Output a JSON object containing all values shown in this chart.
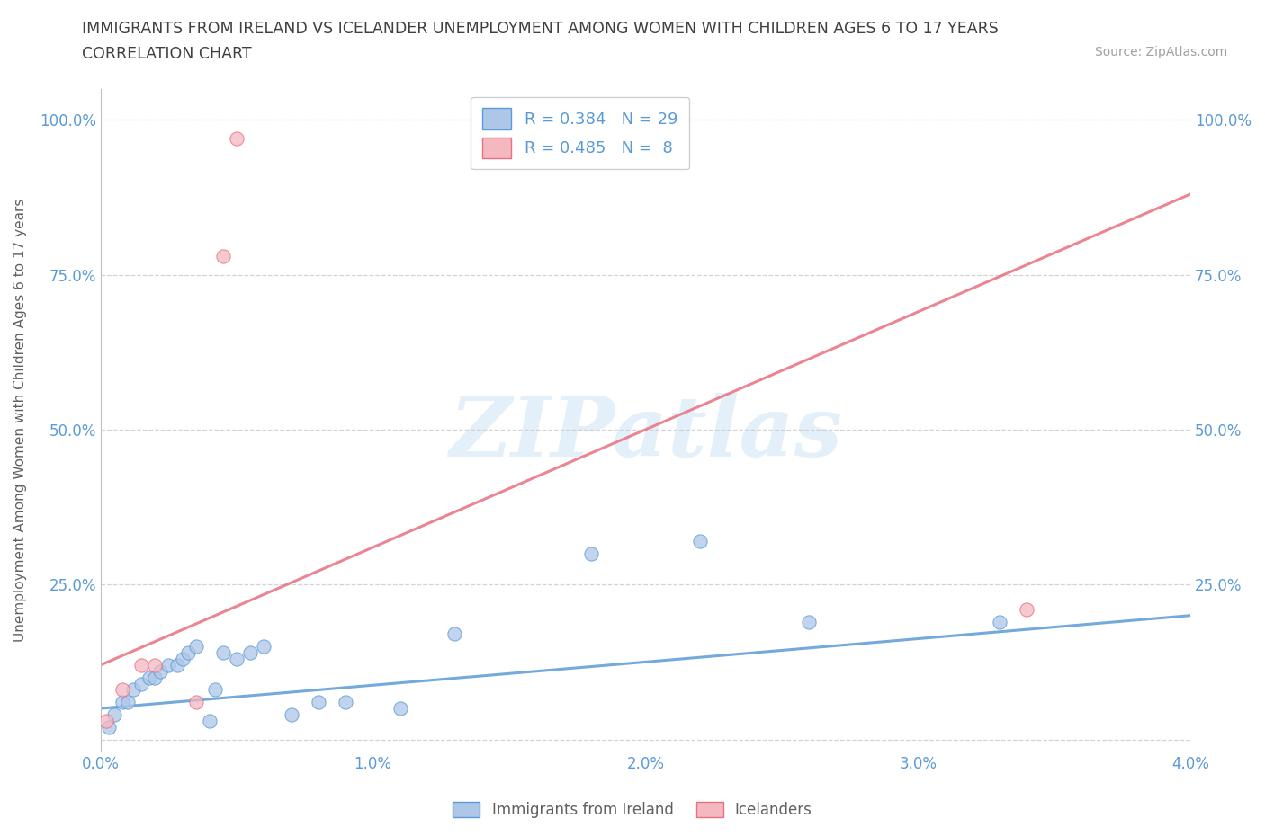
{
  "title": "IMMIGRANTS FROM IRELAND VS ICELANDER UNEMPLOYMENT AMONG WOMEN WITH CHILDREN AGES 6 TO 17 YEARS",
  "subtitle": "CORRELATION CHART",
  "source": "Source: ZipAtlas.com",
  "ylabel": "Unemployment Among Women with Children Ages 6 to 17 years",
  "xlim": [
    0.0,
    0.04
  ],
  "ylim": [
    -0.02,
    1.05
  ],
  "xticks": [
    0.0,
    0.01,
    0.02,
    0.03,
    0.04
  ],
  "xtick_labels": [
    "0.0%",
    "1.0%",
    "2.0%",
    "3.0%",
    "4.0%"
  ],
  "yticks": [
    0.0,
    0.25,
    0.5,
    0.75,
    1.0
  ],
  "ytick_labels": [
    "",
    "25.0%",
    "50.0%",
    "75.0%",
    "100.0%"
  ],
  "blue_r": 0.384,
  "blue_n": 29,
  "pink_r": 0.485,
  "pink_n": 8,
  "blue_color": "#aec6e8",
  "blue_line_color": "#5b9bd5",
  "pink_color": "#f4b8c1",
  "pink_line_color": "#e87080",
  "blue_scatter_x": [
    0.0003,
    0.0005,
    0.0008,
    0.001,
    0.0012,
    0.0015,
    0.0018,
    0.002,
    0.0022,
    0.0025,
    0.0028,
    0.003,
    0.0032,
    0.0035,
    0.004,
    0.0042,
    0.0045,
    0.005,
    0.0055,
    0.006,
    0.007,
    0.008,
    0.009,
    0.011,
    0.013,
    0.018,
    0.022,
    0.026,
    0.033
  ],
  "blue_scatter_y": [
    0.02,
    0.04,
    0.06,
    0.06,
    0.08,
    0.09,
    0.1,
    0.1,
    0.11,
    0.12,
    0.12,
    0.13,
    0.14,
    0.15,
    0.03,
    0.08,
    0.14,
    0.13,
    0.14,
    0.15,
    0.04,
    0.06,
    0.06,
    0.05,
    0.17,
    0.3,
    0.32,
    0.19,
    0.19
  ],
  "pink_scatter_x": [
    0.0002,
    0.0008,
    0.0015,
    0.002,
    0.0035,
    0.0045,
    0.005,
    0.034
  ],
  "pink_scatter_y": [
    0.03,
    0.08,
    0.12,
    0.12,
    0.06,
    0.78,
    0.97,
    0.21
  ],
  "blue_trendline_x": [
    0.0,
    0.04
  ],
  "blue_trendline_y": [
    0.05,
    0.2
  ],
  "pink_trendline_x": [
    0.0,
    0.04
  ],
  "pink_trendline_y": [
    0.12,
    0.88
  ],
  "watermark": "ZIPatlas",
  "legend_label_blue": "Immigrants from Ireland",
  "legend_label_pink": "Icelanders",
  "background_color": "#ffffff",
  "grid_color": "#c8c8c8",
  "title_color": "#404040",
  "axis_label_color": "#606060",
  "tick_label_color": "#5b9bd5"
}
